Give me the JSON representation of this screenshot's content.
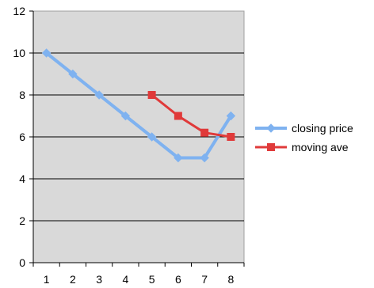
{
  "chart_data": {
    "type": "line",
    "title": "",
    "xlabel": "",
    "ylabel": "",
    "x": [
      1,
      2,
      3,
      4,
      5,
      6,
      7,
      8
    ],
    "xlim": [
      0.5,
      8.5
    ],
    "ylim": [
      0,
      12
    ],
    "yticks": [
      0,
      2,
      4,
      6,
      8,
      10,
      12
    ],
    "xticks": [
      1,
      2,
      3,
      4,
      5,
      6,
      7,
      8
    ],
    "grid": true,
    "plot_background": "#d9d9d9",
    "legend_position": "right",
    "series": [
      {
        "name": "closing price",
        "color": "#7fb2f0",
        "marker": "diamond",
        "x": [
          1,
          2,
          3,
          4,
          5,
          6,
          7,
          8
        ],
        "values": [
          10,
          9,
          8,
          7,
          6,
          5,
          5,
          7
        ]
      },
      {
        "name": "moving ave",
        "color": "#e03a3a",
        "marker": "square",
        "x": [
          5,
          6,
          7,
          8
        ],
        "values": [
          8,
          7,
          6.2,
          6
        ]
      }
    ]
  }
}
